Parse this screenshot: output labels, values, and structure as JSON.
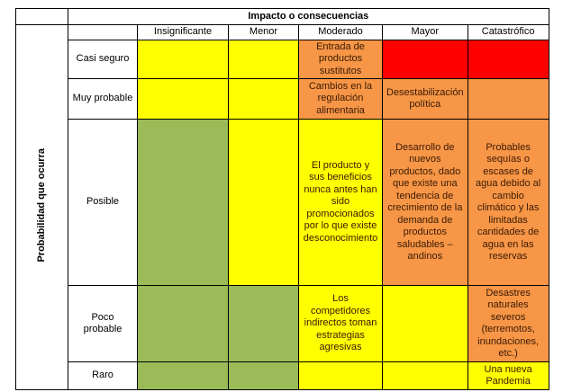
{
  "header": {
    "title": "Impacto o consecuencias"
  },
  "side_label": "Probabilidad que ocurra",
  "columns": [
    "Insignificante",
    "Menor",
    "Moderado",
    "Mayor",
    "Catastrófico"
  ],
  "rows": [
    {
      "label": "Casi seguro",
      "cells": [
        {
          "color": "#ffff00"
        },
        {
          "color": "#ffff00"
        },
        {
          "color": "#f79646",
          "text": "Entrada de productos sustitutos"
        },
        {
          "color": "#ff0000"
        },
        {
          "color": "#ff0000"
        }
      ]
    },
    {
      "label": "Muy probable",
      "cells": [
        {
          "color": "#ffff00"
        },
        {
          "color": "#ffff00"
        },
        {
          "color": "#f79646",
          "text": "Cambios en la regulación alimentaria"
        },
        {
          "color": "#f79646",
          "text": "Desestabilización política"
        },
        {
          "color": "#f79646"
        }
      ]
    },
    {
      "label": "Posible",
      "cells": [
        {
          "color": "#9bbb59"
        },
        {
          "color": "#ffff00"
        },
        {
          "color": "#ffff00",
          "text": "El producto y sus beneficios nunca antes han sido promocionados por lo que existe desconocimiento"
        },
        {
          "color": "#f79646",
          "text": "Desarrollo de nuevos productos, dado que existe una tendencia de crecimiento de la demanda de productos saludables – andinos"
        },
        {
          "color": "#f79646",
          "text": "Probables sequías o escases de agua debido al cambio climático y las limitadas cantidades de agua en las reservas"
        }
      ]
    },
    {
      "label": "Poco probable",
      "cells": [
        {
          "color": "#9bbb59"
        },
        {
          "color": "#9bbb59"
        },
        {
          "color": "#ffff00",
          "text": "Los competidores indirectos toman estrategias agresivas"
        },
        {
          "color": "#ffff00"
        },
        {
          "color": "#f79646",
          "text": "Desastres naturales severos (terremotos, inundaciones, etc.)"
        }
      ]
    },
    {
      "label": "Raro",
      "cells": [
        {
          "color": "#9bbb59"
        },
        {
          "color": "#9bbb59"
        },
        {
          "color": "#ffff00"
        },
        {
          "color": "#ffff00"
        },
        {
          "color": "#ffff00",
          "text": "Una nueva Pandemia"
        }
      ]
    }
  ]
}
